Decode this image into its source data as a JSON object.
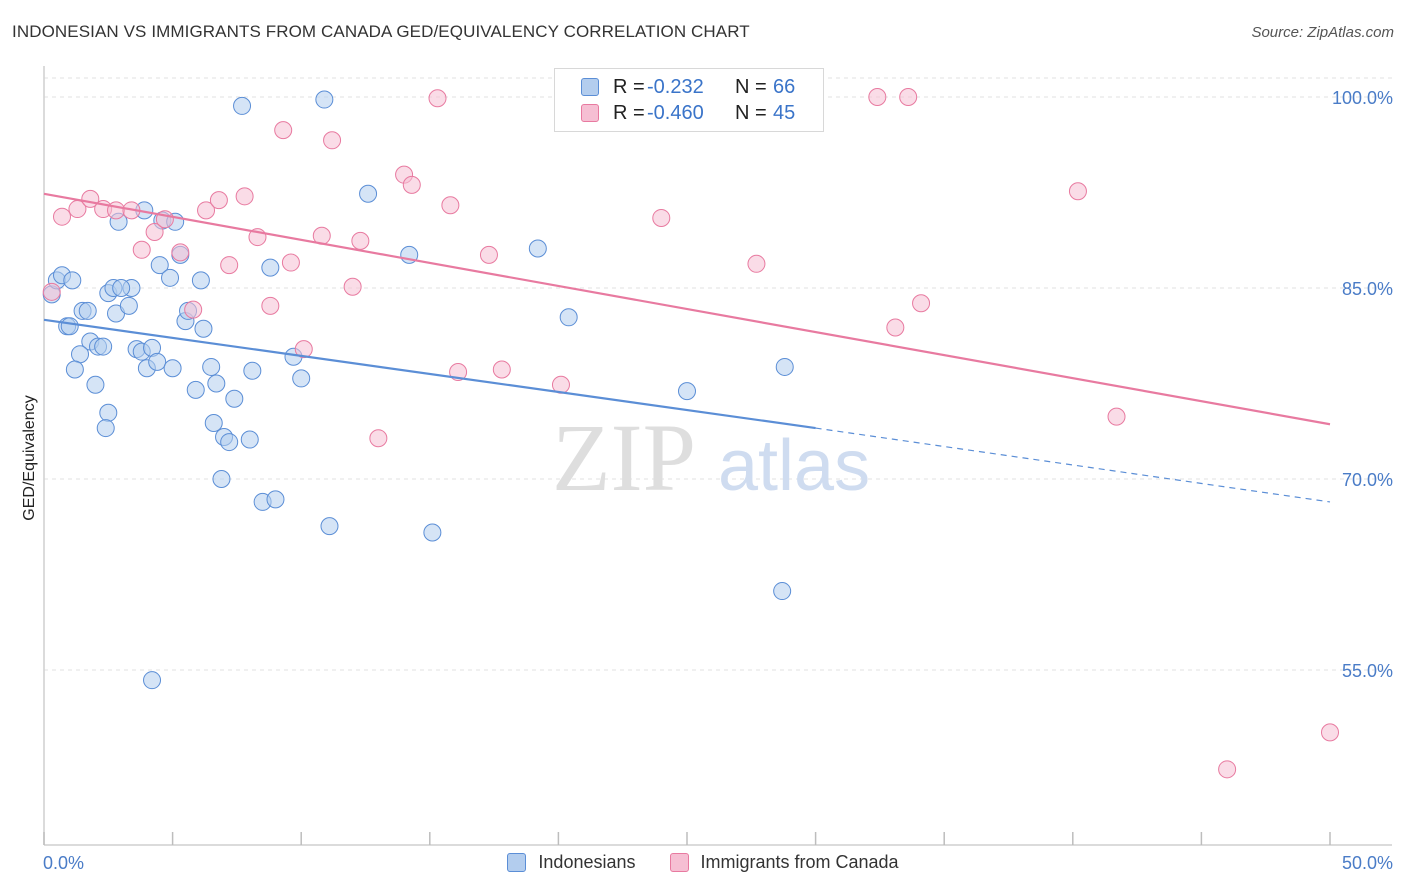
{
  "title": "INDONESIAN VS IMMIGRANTS FROM CANADA GED/EQUIVALENCY CORRELATION CHART",
  "source": "Source: ZipAtlas.com",
  "watermark": {
    "zip": "ZIP",
    "atlas": "atlas"
  },
  "legend_top": {
    "rows": [
      {
        "r_label": "R =",
        "r_value": "-0.232",
        "n_label": "N =",
        "n_value": "66"
      },
      {
        "r_label": "R =",
        "r_value": "-0.460",
        "n_label": "N =",
        "n_value": "45"
      }
    ]
  },
  "chart_data": {
    "type": "scatter",
    "title": "INDONESIAN VS IMMIGRANTS FROM CANADA GED/EQUIVALENCY CORRELATION CHART",
    "xlabel": "",
    "ylabel": "GED/Equivalency",
    "xlim": [
      0,
      50
    ],
    "ylim": [
      37,
      101
    ],
    "x_tick_labels": [
      "0.0%",
      "50.0%"
    ],
    "y_ticks": [
      55,
      70,
      85,
      100
    ],
    "y_tick_labels": [
      "55.0%",
      "70.0%",
      "85.0%",
      "100.0%"
    ],
    "grid": true,
    "legend_position": "bottom",
    "colors": {
      "Indonesians": "#5b8ed6",
      "Immigrants from Canada": "#e87aa0"
    },
    "series": [
      {
        "name": "Indonesians",
        "color": "#5b8ed6",
        "fill": "#b3cdee",
        "r": -0.232,
        "n": 66,
        "trend": {
          "x0": 0,
          "y0": 82.5,
          "x1": 30,
          "y1": 74.0,
          "dash_to_x": 50,
          "dash_to_y": 68.2
        },
        "points": [
          [
            0.3,
            84.5
          ],
          [
            0.5,
            85.6
          ],
          [
            0.7,
            86.0
          ],
          [
            1.1,
            85.6
          ],
          [
            0.9,
            82.0
          ],
          [
            1.0,
            82.0
          ],
          [
            1.5,
            83.2
          ],
          [
            1.7,
            83.2
          ],
          [
            1.8,
            80.8
          ],
          [
            2.1,
            80.4
          ],
          [
            2.3,
            80.4
          ],
          [
            1.4,
            79.8
          ],
          [
            1.2,
            78.6
          ],
          [
            2.0,
            77.4
          ],
          [
            2.5,
            84.6
          ],
          [
            2.7,
            85.0
          ],
          [
            2.8,
            83.0
          ],
          [
            3.3,
            83.6
          ],
          [
            3.4,
            85.0
          ],
          [
            2.9,
            90.2
          ],
          [
            3.9,
            91.1
          ],
          [
            3.6,
            80.2
          ],
          [
            3.8,
            80.0
          ],
          [
            4.2,
            80.3
          ],
          [
            4.0,
            78.7
          ],
          [
            4.4,
            79.2
          ],
          [
            4.5,
            86.8
          ],
          [
            4.9,
            85.8
          ],
          [
            4.6,
            90.3
          ],
          [
            5.1,
            90.2
          ],
          [
            5.3,
            87.6
          ],
          [
            5.5,
            82.4
          ],
          [
            5.6,
            83.2
          ],
          [
            5.9,
            77.0
          ],
          [
            6.1,
            85.6
          ],
          [
            6.2,
            81.8
          ],
          [
            6.5,
            78.8
          ],
          [
            6.7,
            77.5
          ],
          [
            6.6,
            74.4
          ],
          [
            7.0,
            73.3
          ],
          [
            7.2,
            72.9
          ],
          [
            7.4,
            76.3
          ],
          [
            6.9,
            70.0
          ],
          [
            8.0,
            73.1
          ],
          [
            8.1,
            78.5
          ],
          [
            8.8,
            86.6
          ],
          [
            8.5,
            68.2
          ],
          [
            9.0,
            68.4
          ],
          [
            9.7,
            79.6
          ],
          [
            10.0,
            77.9
          ],
          [
            10.9,
            99.8
          ],
          [
            7.7,
            99.3
          ],
          [
            12.6,
            92.4
          ],
          [
            11.1,
            66.3
          ],
          [
            14.2,
            87.6
          ],
          [
            15.1,
            65.8
          ],
          [
            19.2,
            88.1
          ],
          [
            20.4,
            82.7
          ],
          [
            25.0,
            76.9
          ],
          [
            28.8,
            78.8
          ],
          [
            28.7,
            61.2
          ],
          [
            4.2,
            54.2
          ],
          [
            2.5,
            75.2
          ],
          [
            2.4,
            74.0
          ],
          [
            5.0,
            78.7
          ],
          [
            3.0,
            85.0
          ]
        ]
      },
      {
        "name": "Immigrants from Canada",
        "color": "#e87aa0",
        "fill": "#f6bfd3",
        "r": -0.46,
        "n": 45,
        "trend": {
          "x0": 0,
          "y0": 92.4,
          "x1": 50,
          "y1": 74.3
        },
        "points": [
          [
            0.3,
            84.7
          ],
          [
            0.7,
            90.6
          ],
          [
            1.3,
            91.2
          ],
          [
            1.8,
            92.0
          ],
          [
            2.3,
            91.2
          ],
          [
            2.8,
            91.1
          ],
          [
            3.4,
            91.1
          ],
          [
            3.8,
            88.0
          ],
          [
            4.3,
            89.4
          ],
          [
            4.7,
            90.4
          ],
          [
            5.3,
            87.8
          ],
          [
            5.8,
            83.3
          ],
          [
            6.3,
            91.1
          ],
          [
            6.8,
            91.9
          ],
          [
            7.2,
            86.8
          ],
          [
            7.8,
            92.2
          ],
          [
            8.3,
            89.0
          ],
          [
            8.8,
            83.6
          ],
          [
            9.3,
            97.4
          ],
          [
            9.6,
            87.0
          ],
          [
            10.1,
            80.2
          ],
          [
            10.8,
            89.1
          ],
          [
            11.2,
            96.6
          ],
          [
            12.0,
            85.1
          ],
          [
            12.3,
            88.7
          ],
          [
            13.0,
            73.2
          ],
          [
            14.0,
            93.9
          ],
          [
            14.3,
            93.1
          ],
          [
            15.3,
            99.9
          ],
          [
            15.8,
            91.5
          ],
          [
            16.1,
            78.4
          ],
          [
            17.3,
            87.6
          ],
          [
            17.8,
            78.6
          ],
          [
            20.1,
            77.4
          ],
          [
            24.0,
            90.5
          ],
          [
            27.7,
            86.9
          ],
          [
            29.8,
            100.0
          ],
          [
            32.4,
            100.0
          ],
          [
            33.6,
            100.0
          ],
          [
            33.1,
            81.9
          ],
          [
            34.1,
            83.8
          ],
          [
            40.2,
            92.6
          ],
          [
            41.7,
            74.9
          ],
          [
            46.0,
            47.2
          ],
          [
            50.0,
            50.1
          ]
        ]
      }
    ]
  },
  "y_axis_label": "GED/Equivalency",
  "x_axis": {
    "min_label": "0.0%",
    "max_label": "50.0%"
  },
  "legend_bottom": [
    {
      "label": "Indonesians",
      "color": "#5b8ed6"
    },
    {
      "label": "Immigrants from Canada",
      "color": "#e87aa0"
    }
  ]
}
